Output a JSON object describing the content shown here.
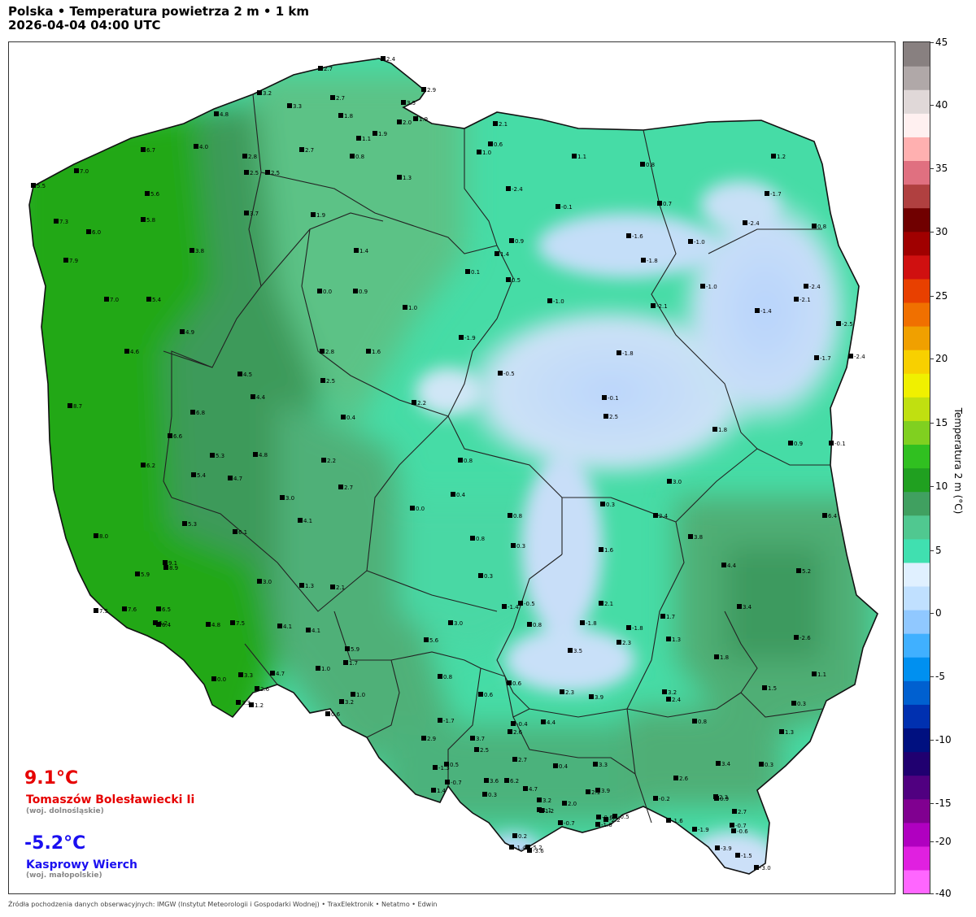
{
  "header": {
    "title_line1": "Polska • Temperatura powietrza 2 m • 1 km",
    "title_line2": "2026-04-04  04:00  UTC"
  },
  "colorbar": {
    "label": "Temperatura 2 m (°C)",
    "min": -40,
    "max": 45,
    "ticks": [
      "45",
      "40",
      "35",
      "30",
      "25",
      "20",
      "15",
      "10",
      "5",
      "0",
      "-5",
      "-10",
      "-15",
      "-20",
      "-40"
    ],
    "colors": [
      "#ff66ff",
      "#e020e0",
      "#b000c0",
      "#800090",
      "#500080",
      "#200070",
      "#001080",
      "#0030b0",
      "#0060d0",
      "#0090f0",
      "#40b0ff",
      "#90c8ff",
      "#c0e0ff",
      "#e0f0ff",
      "#40e0b0",
      "#50c890",
      "#40a060",
      "#20a020",
      "#30c020",
      "#80d020",
      "#c0e010",
      "#f0f000",
      "#f8d000",
      "#f0a000",
      "#f07000",
      "#e84000",
      "#d01010",
      "#a00000",
      "#700000",
      "#b04040",
      "#e07080",
      "#ffb0b0",
      "#fff0f0",
      "#e0d8d8",
      "#b0a8a8",
      "#888080"
    ]
  },
  "highlights": {
    "max_temp": "9.1°C",
    "max_station": "Tomaszów Bolesławiecki Ii",
    "max_region": "(woj. dolnośląskie)",
    "min_temp": "-5.2°C",
    "min_station": "Kasprowy Wierch",
    "min_region": "(woj. małopolskie)"
  },
  "sources": "Źródła pochodzenia danych obserwacyjnych: IMGW (Instytut Meteorologii i Gospodarki Wodnej)  •  TraxElektronik  •  Netatmo  •  Edwin",
  "stations": [
    {
      "label": "2.4"
    },
    {
      "label": "2.9"
    },
    {
      "label": "2.7"
    },
    {
      "label": "3.5"
    },
    {
      "label": "1.9"
    },
    {
      "label": "3.2"
    },
    {
      "label": "3.3"
    },
    {
      "label": "2.7"
    },
    {
      "label": "1.8"
    },
    {
      "label": "2.0"
    },
    {
      "label": "1.9"
    },
    {
      "label": "2.1"
    },
    {
      "label": "4.8"
    },
    {
      "label": "1.1"
    },
    {
      "label": "0.6"
    },
    {
      "label": "1.0"
    },
    {
      "label": "1.1"
    },
    {
      "label": "0.8"
    },
    {
      "label": "1.2"
    },
    {
      "label": "2.7"
    },
    {
      "label": "2.5"
    },
    {
      "label": "0.8"
    },
    {
      "label": "1.3"
    },
    {
      "label": "-2.4"
    },
    {
      "label": "-1.7"
    },
    {
      "label": "6.7"
    },
    {
      "label": "7.0"
    },
    {
      "label": "5.5"
    },
    {
      "label": "4.0"
    },
    {
      "label": "5.6"
    },
    {
      "label": "5.8"
    },
    {
      "label": "6.0"
    },
    {
      "label": "7.3"
    },
    {
      "label": "7.9"
    },
    {
      "label": "3.8"
    },
    {
      "label": "3.7"
    },
    {
      "label": "2.8"
    },
    {
      "label": "2.5"
    },
    {
      "label": "1.4"
    },
    {
      "label": "0.0"
    },
    {
      "label": "0.9"
    },
    {
      "label": "1.9"
    },
    {
      "label": "-0.1"
    },
    {
      "label": "0.7"
    },
    {
      "label": "-2.4"
    },
    {
      "label": "0.8"
    },
    {
      "label": "-1.6"
    },
    {
      "label": "-1.0"
    },
    {
      "label": "-1.8"
    },
    {
      "label": "0.9"
    },
    {
      "label": "1.4"
    },
    {
      "label": "0.5"
    },
    {
      "label": "0.1"
    },
    {
      "label": "-1.0"
    },
    {
      "label": "-2.1"
    },
    {
      "label": "-1.0"
    },
    {
      "label": "-2.4"
    },
    {
      "label": "-1.4"
    },
    {
      "label": "-2.1"
    },
    {
      "label": "-2.5"
    },
    {
      "label": "-1.7"
    },
    {
      "label": "-2.4"
    },
    {
      "label": "7.0"
    },
    {
      "label": "5.4"
    },
    {
      "label": "4.9"
    },
    {
      "label": "4.6"
    },
    {
      "label": "1.0"
    },
    {
      "label": "-1.9"
    },
    {
      "label": "-1.8"
    },
    {
      "label": "2.8"
    },
    {
      "label": "1.6"
    },
    {
      "label": "-0.5"
    },
    {
      "label": "4.5"
    },
    {
      "label": "2.5"
    },
    {
      "label": "8.7"
    },
    {
      "label": "4.4"
    },
    {
      "label": "-0.1"
    },
    {
      "label": "2.2"
    },
    {
      "label": "2.5"
    },
    {
      "label": "6.8"
    },
    {
      "label": "0.4"
    },
    {
      "label": "1.8"
    },
    {
      "label": "0.9"
    },
    {
      "label": "-0.1"
    },
    {
      "label": "6.6"
    },
    {
      "label": "5.3"
    },
    {
      "label": "4.8"
    },
    {
      "label": "2.2"
    },
    {
      "label": "0.8"
    },
    {
      "label": "6.2"
    },
    {
      "label": "5.4"
    },
    {
      "label": "4.7"
    },
    {
      "label": "3.0"
    },
    {
      "label": "2.7"
    },
    {
      "label": "0.4"
    },
    {
      "label": "0.8"
    },
    {
      "label": "3.0"
    },
    {
      "label": "0.0"
    },
    {
      "label": "0.3"
    },
    {
      "label": "2.4"
    },
    {
      "label": "4.1"
    },
    {
      "label": "5.3"
    },
    {
      "label": "6.1"
    },
    {
      "label": "8.0"
    },
    {
      "label": "3.8"
    },
    {
      "label": "6.4"
    },
    {
      "label": "0.8"
    },
    {
      "label": "0.3"
    },
    {
      "label": "9.1"
    },
    {
      "label": "8.9"
    },
    {
      "label": "3.0"
    },
    {
      "label": "1.6"
    },
    {
      "label": "4.4"
    },
    {
      "label": "5.2"
    },
    {
      "label": "5.9"
    },
    {
      "label": "1.3"
    },
    {
      "label": "2.1"
    },
    {
      "label": "0.3"
    },
    {
      "label": "7.5"
    },
    {
      "label": "7.6"
    },
    {
      "label": "6.5"
    },
    {
      "label": "-1.4"
    },
    {
      "label": "-0.5"
    },
    {
      "label": "2.1"
    },
    {
      "label": "3.4"
    },
    {
      "label": "6.2"
    },
    {
      "label": "6.4"
    },
    {
      "label": "4.8"
    },
    {
      "label": "7.5"
    },
    {
      "label": "3.0"
    },
    {
      "label": "0.8"
    },
    {
      "label": "-1.8"
    },
    {
      "label": "-1.8"
    },
    {
      "label": "1.7"
    },
    {
      "label": "4.1"
    },
    {
      "label": "4.1"
    },
    {
      "label": "5.9"
    },
    {
      "label": "5.6"
    },
    {
      "label": "2.3"
    },
    {
      "label": "1.3"
    },
    {
      "label": "-2.6"
    },
    {
      "label": "3.5"
    },
    {
      "label": "1.8"
    },
    {
      "label": "0.0"
    },
    {
      "label": "3.3"
    },
    {
      "label": "4.7"
    },
    {
      "label": "1.0"
    },
    {
      "label": "1.7"
    },
    {
      "label": "0.8"
    },
    {
      "label": "1.1"
    },
    {
      "label": "0.6"
    },
    {
      "label": "3.2"
    },
    {
      "label": "1.5"
    },
    {
      "label": "3.3"
    },
    {
      "label": "2.6"
    },
    {
      "label": "1.2"
    },
    {
      "label": "3.2"
    },
    {
      "label": "1.0"
    },
    {
      "label": "0.6"
    },
    {
      "label": "2.3"
    },
    {
      "label": "3.9"
    },
    {
      "label": "2.4"
    },
    {
      "label": "0.3"
    },
    {
      "label": "0.6"
    },
    {
      "label": "-1.7"
    },
    {
      "label": "-0.4"
    },
    {
      "label": "4.4"
    },
    {
      "label": "0.8"
    },
    {
      "label": "1.3"
    },
    {
      "label": "2.9"
    },
    {
      "label": "3.7"
    },
    {
      "label": "2.6"
    },
    {
      "label": "2.5"
    },
    {
      "label": "2.7"
    },
    {
      "label": "3.3"
    },
    {
      "label": "3.4"
    },
    {
      "label": "0.3"
    },
    {
      "label": "0.5"
    },
    {
      "label": "-1.3"
    },
    {
      "label": "3.6"
    },
    {
      "label": "6.2"
    },
    {
      "label": "0.4"
    },
    {
      "label": "2.6"
    },
    {
      "label": "4.7"
    },
    {
      "label": "0.9"
    },
    {
      "label": "1.4"
    },
    {
      "label": "-0.7"
    },
    {
      "label": "0.3"
    },
    {
      "label": "2.1"
    },
    {
      "label": "3.9"
    },
    {
      "label": "-0.2"
    },
    {
      "label": "2.3"
    },
    {
      "label": "3.2"
    },
    {
      "label": "2.0"
    },
    {
      "label": "2.7"
    },
    {
      "label": "-0.7"
    },
    {
      "label": "1.1"
    },
    {
      "label": "1.2"
    },
    {
      "label": "-0.6"
    },
    {
      "label": "-0.5"
    },
    {
      "label": "-1.6"
    },
    {
      "label": "-1.9"
    },
    {
      "label": "-0.6"
    },
    {
      "label": "-0.7"
    },
    {
      "label": "-2.2"
    },
    {
      "label": "-1.6"
    },
    {
      "label": "0.2"
    },
    {
      "label": "-1.4"
    },
    {
      "label": "-5.2"
    },
    {
      "label": "-3.6"
    },
    {
      "label": "-3.9"
    },
    {
      "label": "-1.5"
    },
    {
      "label": "-3.0"
    }
  ]
}
